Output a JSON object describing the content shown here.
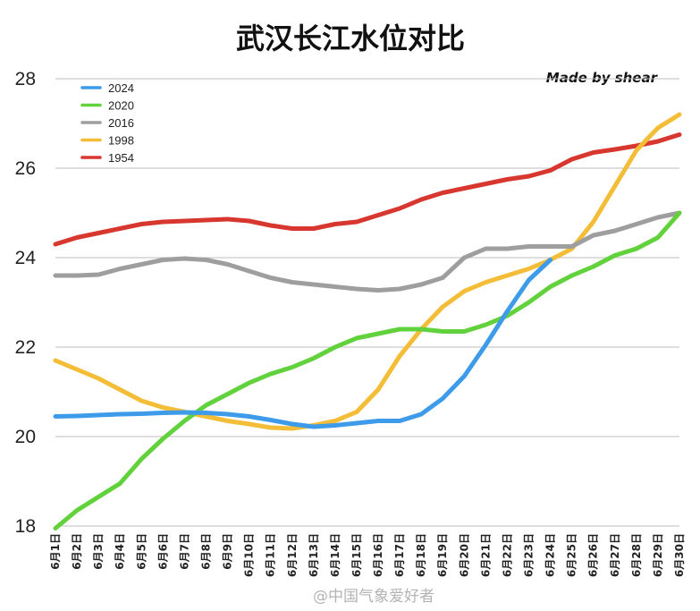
{
  "chart_data": {
    "type": "line",
    "title": "武汉长江水位对比",
    "credit": "Made by shear",
    "watermark": "@中国气象爱好者",
    "xlabel": "",
    "ylabel": "",
    "ylim": [
      18,
      28
    ],
    "yticks": [
      18,
      20,
      22,
      24,
      26,
      28
    ],
    "grid": true,
    "legend_position": "top-left",
    "categories": [
      "6月1日",
      "6月2日",
      "6月3日",
      "6月4日",
      "6月5日",
      "6月6日",
      "6月7日",
      "6月8日",
      "6月9日",
      "6月10日",
      "6月11日",
      "6月12日",
      "6月13日",
      "6月14日",
      "6月15日",
      "6月16日",
      "6月17日",
      "6月18日",
      "6月19日",
      "6月20日",
      "6月21日",
      "6月22日",
      "6月23日",
      "6月24日",
      "6月25日",
      "6月26日",
      "6月27日",
      "6月28日",
      "6月29日",
      "6月30日"
    ],
    "series": [
      {
        "name": "2024",
        "color": "#3d9be9",
        "values": [
          20.45,
          20.46,
          20.48,
          20.5,
          20.51,
          20.53,
          20.54,
          20.53,
          20.5,
          20.45,
          20.37,
          20.28,
          20.22,
          20.25,
          20.3,
          20.35,
          20.35,
          20.5,
          20.85,
          21.35,
          22.05,
          22.8,
          23.5,
          23.95,
          null,
          null,
          null,
          null,
          null,
          null
        ]
      },
      {
        "name": "2020",
        "color": "#62d23c",
        "values": [
          17.95,
          18.35,
          18.65,
          18.95,
          19.5,
          19.95,
          20.35,
          20.7,
          20.95,
          21.2,
          21.4,
          21.55,
          21.75,
          22.0,
          22.2,
          22.3,
          22.4,
          22.4,
          22.35,
          22.35,
          22.5,
          22.7,
          23.0,
          23.35,
          23.6,
          23.8,
          24.05,
          24.2,
          24.45,
          25.0
        ]
      },
      {
        "name": "2016",
        "color": "#9e9e9e",
        "values": [
          23.6,
          23.6,
          23.62,
          23.75,
          23.85,
          23.95,
          23.98,
          23.95,
          23.85,
          23.7,
          23.55,
          23.45,
          23.4,
          23.35,
          23.3,
          23.27,
          23.3,
          23.4,
          23.55,
          24.0,
          24.2,
          24.2,
          24.25,
          24.25,
          24.25,
          24.5,
          24.6,
          24.75,
          24.9,
          25.0
        ]
      },
      {
        "name": "1998",
        "color": "#f4bd37",
        "values": [
          21.7,
          21.5,
          21.3,
          21.05,
          20.8,
          20.65,
          20.55,
          20.45,
          20.35,
          20.28,
          20.2,
          20.18,
          20.25,
          20.35,
          20.55,
          21.05,
          21.8,
          22.4,
          22.9,
          23.25,
          23.45,
          23.6,
          23.75,
          23.95,
          24.2,
          24.8,
          25.6,
          26.4,
          26.9,
          27.2
        ]
      },
      {
        "name": "1954",
        "color": "#d7372e",
        "values": [
          24.3,
          24.45,
          24.55,
          24.65,
          24.75,
          24.8,
          24.82,
          24.84,
          24.86,
          24.82,
          24.72,
          24.65,
          24.65,
          24.75,
          24.8,
          24.95,
          25.1,
          25.3,
          25.45,
          25.55,
          25.65,
          25.75,
          25.82,
          25.95,
          26.2,
          26.35,
          26.42,
          26.5,
          26.6,
          26.75
        ]
      }
    ]
  }
}
